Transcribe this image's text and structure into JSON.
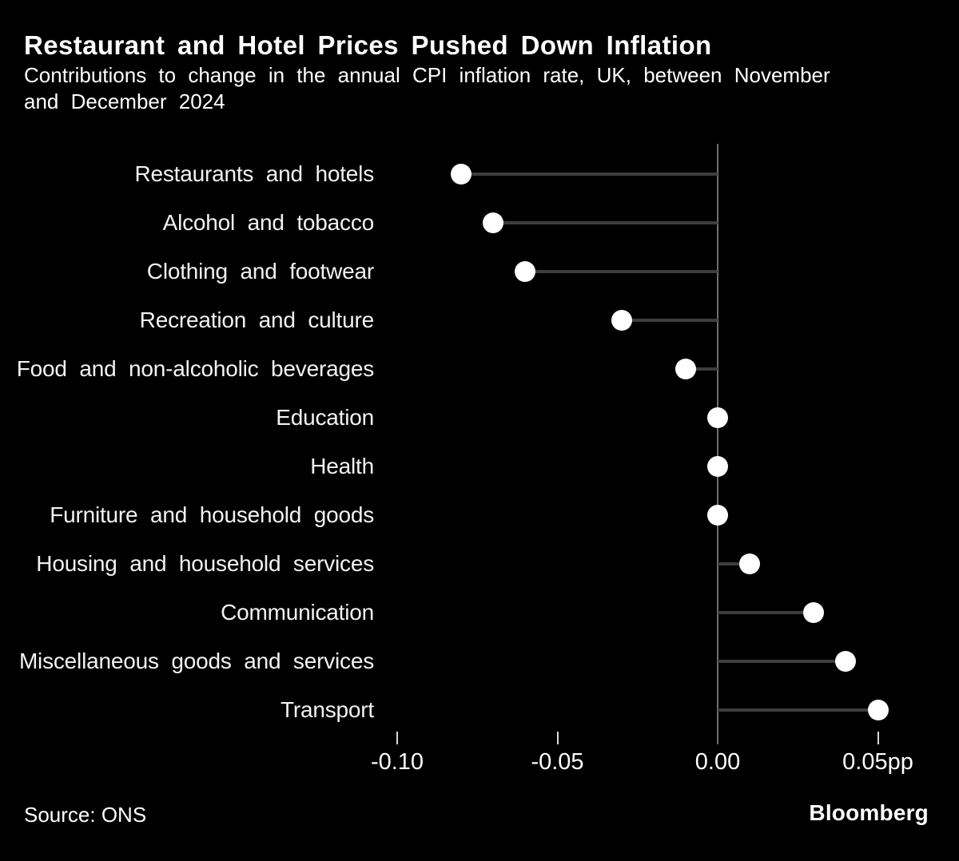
{
  "header": {
    "title": "Restaurant and Hotel Prices Pushed Down Inflation",
    "subtitle_lines": [
      "Contributions to change in the annual CPI inflation rate, UK, between November",
      "and December 2024"
    ]
  },
  "chart_data": {
    "type": "lollipop",
    "orientation": "horizontal",
    "title": "Restaurant and Hotel Prices Pushed Down Inflation",
    "subtitle": "Contributions to change in the annual CPI inflation rate, UK, between November and December 2024",
    "unit": "pp",
    "xlabel": "",
    "ylabel": "",
    "categories": [
      "Restaurants and hotels",
      "Alcohol and tobacco",
      "Clothing and footwear",
      "Recreation and culture",
      "Food and non-alcoholic beverages",
      "Education",
      "Health",
      "Furniture and household goods",
      "Housing and household services",
      "Communication",
      "Miscellaneous goods and services",
      "Transport"
    ],
    "values": [
      -0.08,
      -0.07,
      -0.06,
      -0.03,
      -0.01,
      0.0,
      0.0,
      0.0,
      0.01,
      0.03,
      0.04,
      0.05
    ],
    "baseline": 0,
    "x_ticks": [
      {
        "value": -0.1,
        "label": "-0.10"
      },
      {
        "value": -0.05,
        "label": "-0.05"
      },
      {
        "value": 0.0,
        "label": "0.00"
      },
      {
        "value": 0.05,
        "label": "0.05pp"
      }
    ],
    "xlim": [
      -0.115,
      0.075
    ],
    "grid": false,
    "legend": false
  },
  "footer": {
    "source": "Source: ONS",
    "brand": "Bloomberg"
  },
  "colors": {
    "background": "#000000",
    "title_text": "#ffffff",
    "label_text": "#f2f2f2",
    "axis_line": "#6f6f6f",
    "tick_mark": "#d9d9d9",
    "connector_line": "#3d3d3d",
    "dot_fill": "#ffffff"
  }
}
